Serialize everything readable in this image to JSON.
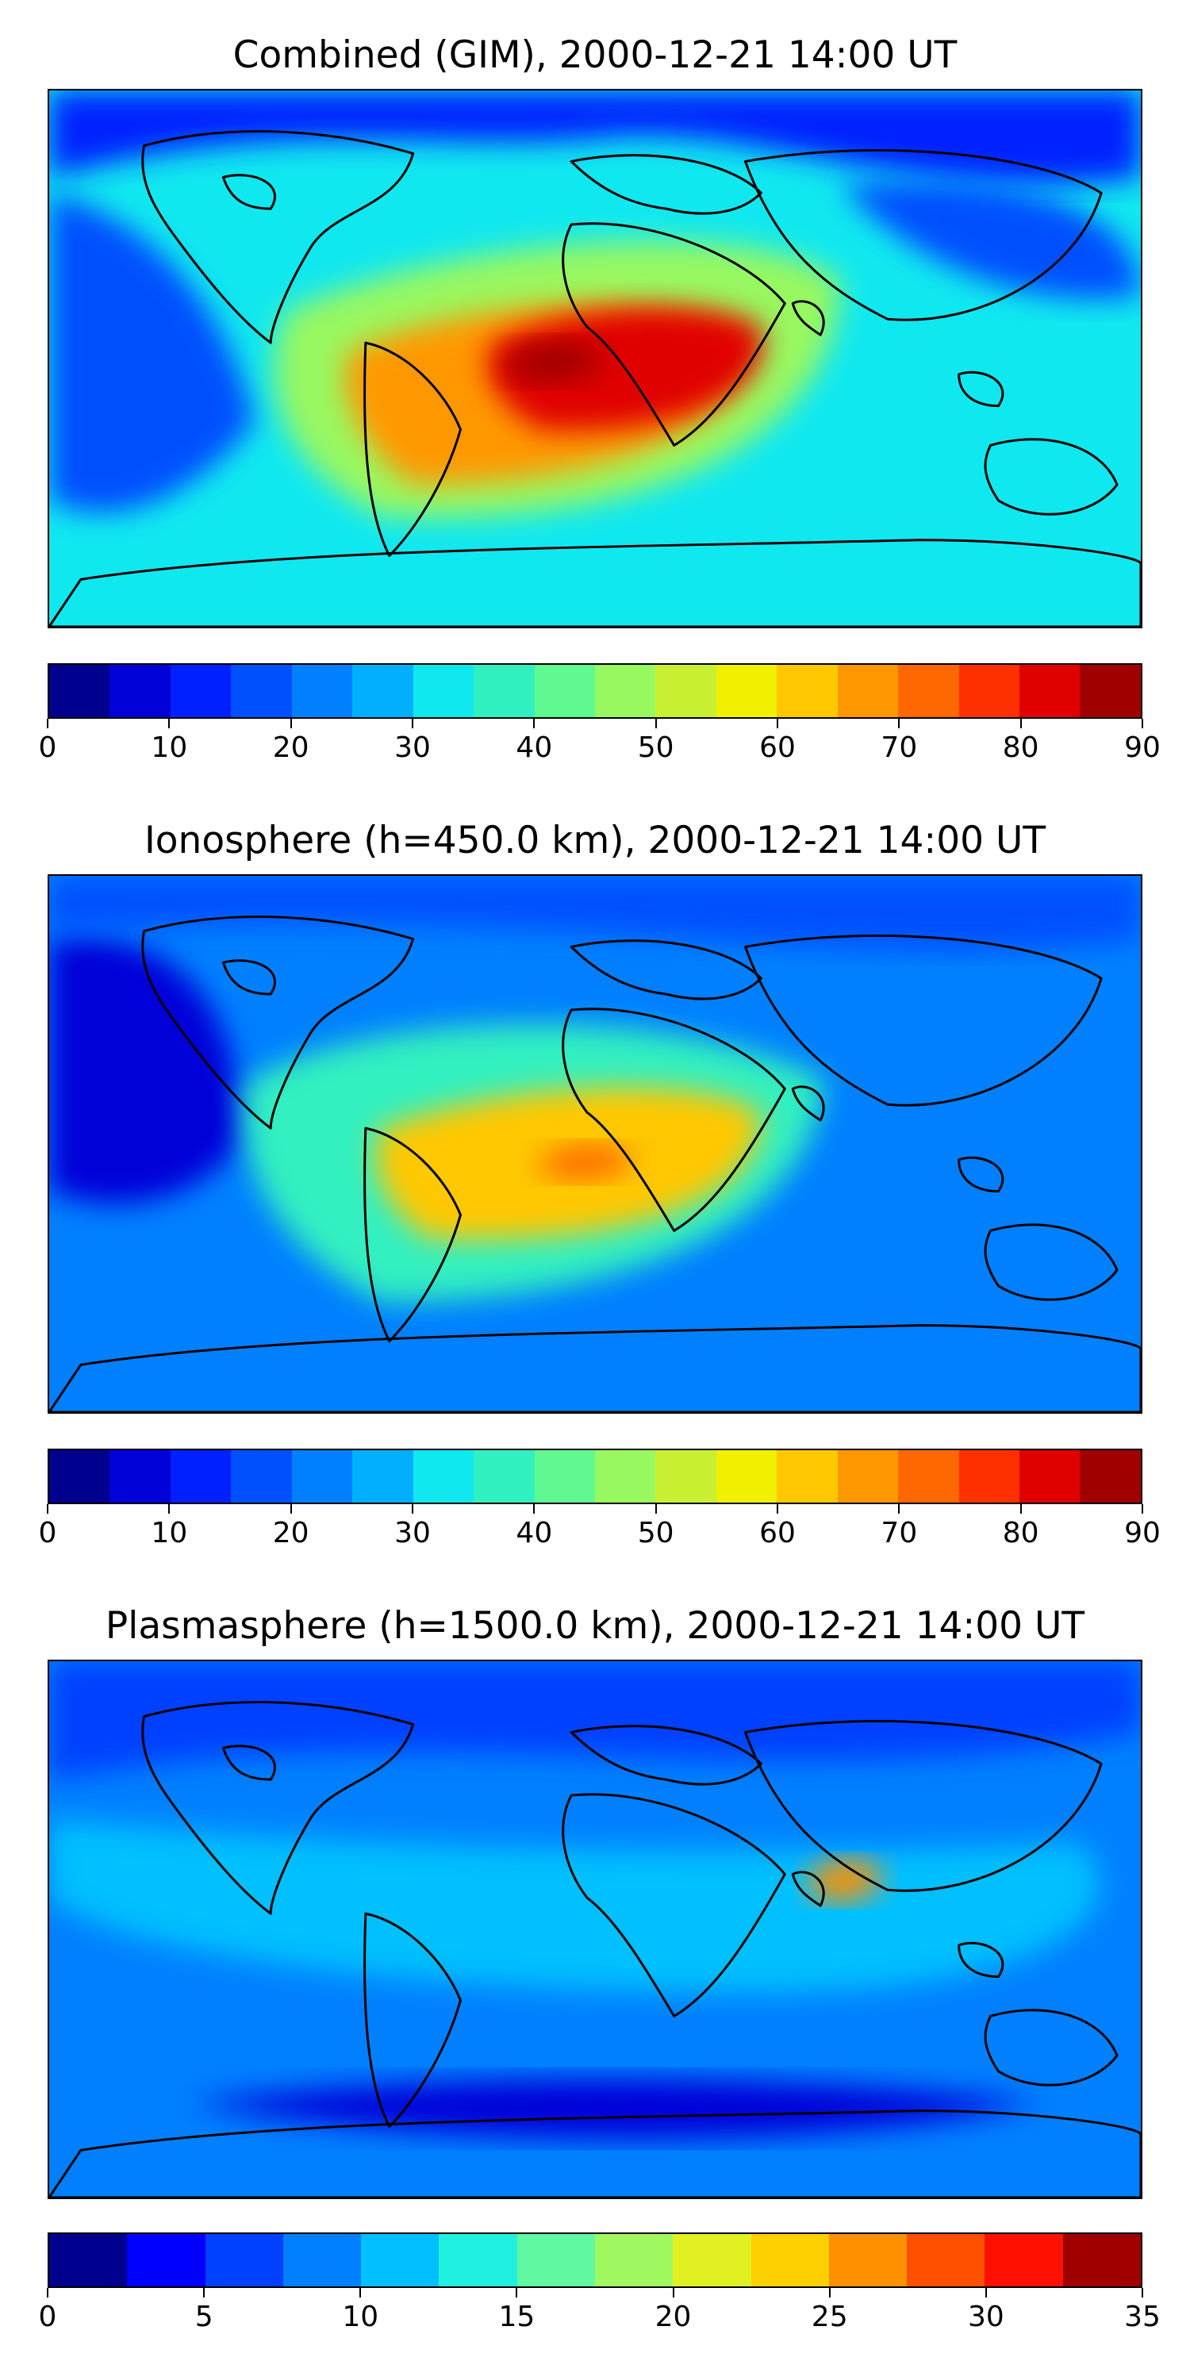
{
  "panels": [
    {
      "title": "Combined (GIM), 2000-12-21 14:00 UT",
      "colorbar": {
        "min": 0,
        "max": 90,
        "step": 5,
        "ticks": [
          "0",
          "10",
          "20",
          "30",
          "40",
          "50",
          "60",
          "70",
          "80",
          "90"
        ],
        "colors": [
          "#00008f",
          "#0000d8",
          "#0020ff",
          "#0050ff",
          "#0080ff",
          "#00b0ff",
          "#10e8f0",
          "#30f0c0",
          "#60f890",
          "#98f860",
          "#c8f030",
          "#f0f000",
          "#ffc800",
          "#ff9800",
          "#ff6800",
          "#ff3000",
          "#e00000",
          "#a00000"
        ]
      },
      "map": {
        "background": "#10e8f0",
        "features": [
          {
            "name": "north-polar-low",
            "color": "#0020ff"
          },
          {
            "name": "pacific-low",
            "color": "#0050ff"
          },
          {
            "name": "asia-low",
            "color": "#0050ff"
          },
          {
            "name": "atlantic-mid",
            "color": "#98f860"
          },
          {
            "name": "south-america-high",
            "color": "#ff9800"
          },
          {
            "name": "africa-peak",
            "color": "#e00000"
          },
          {
            "name": "africa-core",
            "color": "#a00000"
          }
        ]
      }
    },
    {
      "title": "Ionosphere  (h=450.0 km), 2000-12-21 14:00 UT",
      "colorbar": {
        "min": 0,
        "max": 90,
        "step": 5,
        "ticks": [
          "0",
          "10",
          "20",
          "30",
          "40",
          "50",
          "60",
          "70",
          "80",
          "90"
        ],
        "colors": [
          "#00008f",
          "#0000d8",
          "#0020ff",
          "#0050ff",
          "#0080ff",
          "#00b0ff",
          "#10e8f0",
          "#30f0c0",
          "#60f890",
          "#98f860",
          "#c8f030",
          "#f0f000",
          "#ffc800",
          "#ff9800",
          "#ff6800",
          "#ff3000",
          "#e00000",
          "#a00000"
        ]
      },
      "map": {
        "background": "#0080ff",
        "features": [
          {
            "name": "pacific-low",
            "color": "#0000d8"
          },
          {
            "name": "north-low",
            "color": "#0050ff"
          },
          {
            "name": "atlantic-mid",
            "color": "#30f0c0"
          },
          {
            "name": "africa-high",
            "color": "#ffc800"
          },
          {
            "name": "africa-peak",
            "color": "#ff6800"
          }
        ]
      }
    },
    {
      "title": "Plasmasphere (h=1500.0 km), 2000-12-21 14:00 UT",
      "colorbar": {
        "min": 0,
        "max": 35,
        "step": 2.5,
        "ticks": [
          "0",
          "5",
          "10",
          "15",
          "20",
          "25",
          "30",
          "35"
        ],
        "colors": [
          "#00008f",
          "#0000ff",
          "#0040ff",
          "#0080ff",
          "#00c0ff",
          "#20f0e0",
          "#60f8a0",
          "#a0f860",
          "#e0f020",
          "#ffd000",
          "#ff9000",
          "#ff5000",
          "#ff1000",
          "#a00000"
        ]
      },
      "map": {
        "background": "#0080ff",
        "features": [
          {
            "name": "north-low",
            "color": "#0040ff"
          },
          {
            "name": "south-band-low",
            "color": "#0000d8"
          },
          {
            "name": "tropics-mid",
            "color": "#00c0ff"
          },
          {
            "name": "india-peak",
            "color": "#ff9000"
          }
        ]
      }
    }
  ]
}
